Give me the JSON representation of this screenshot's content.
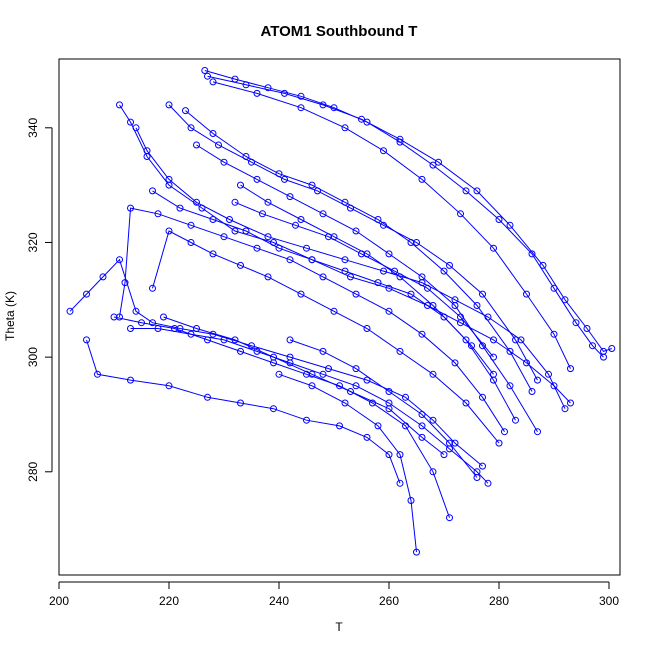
{
  "chart_data": {
    "type": "line",
    "title": "ATOM1 Southbound T",
    "xlabel": "T",
    "ylabel": "Theta (K)",
    "xlim": [
      200,
      302
    ],
    "ylim": [
      262,
      352
    ],
    "xticks": [
      200,
      220,
      240,
      260,
      280,
      300
    ],
    "yticks": [
      280,
      300,
      320,
      340
    ],
    "grid": false,
    "legend": "none",
    "marker": "open-circle",
    "color": "#0000ff",
    "series": [
      {
        "x": [
          226.5,
          232,
          238,
          244,
          250,
          256,
          262,
          268,
          274,
          280,
          286,
          290,
          294,
          297,
          299
        ],
        "y": [
          350,
          348.5,
          347,
          345.5,
          343.5,
          341,
          337.5,
          333.5,
          329,
          324,
          318,
          312,
          306,
          302,
          300
        ]
      },
      {
        "x": [
          227,
          234,
          241,
          248,
          255,
          262,
          269,
          276,
          282,
          288,
          292,
          296,
          299,
          300.5
        ],
        "y": [
          349,
          347.5,
          346,
          344,
          341.5,
          338,
          334,
          329,
          323,
          316,
          310,
          305,
          301,
          301.5
        ]
      },
      {
        "x": [
          228,
          236,
          244,
          252,
          259,
          266,
          273,
          279,
          285,
          290,
          293
        ],
        "y": [
          348,
          346,
          343.5,
          340,
          336,
          331,
          325,
          319,
          311,
          304,
          298
        ]
      },
      {
        "x": [
          211,
          213,
          216,
          220,
          226,
          232,
          239,
          246,
          253,
          260,
          267,
          273,
          279,
          285,
          290,
          293
        ],
        "y": [
          344,
          341,
          335,
          330,
          326,
          322,
          320,
          317,
          314,
          312,
          309,
          306,
          303,
          299,
          295,
          292
        ]
      },
      {
        "x": [
          214,
          216,
          220,
          225,
          231,
          238,
          245,
          252,
          259,
          266,
          272,
          278,
          284,
          289,
          292
        ],
        "y": [
          340,
          336,
          331,
          327,
          324,
          321,
          319,
          317,
          315,
          313,
          310,
          307,
          303,
          297,
          291
        ]
      },
      {
        "x": [
          220,
          224,
          229,
          235,
          241,
          247,
          253,
          259,
          265,
          271,
          277,
          283,
          287
        ],
        "y": [
          344,
          340,
          337,
          334,
          331,
          329,
          326,
          323,
          320,
          316,
          311,
          303,
          296
        ]
      },
      {
        "x": [
          223,
          228,
          234,
          240,
          246,
          252,
          258,
          264,
          270,
          276,
          282,
          286
        ],
        "y": [
          343,
          339,
          335,
          332,
          330,
          327,
          324,
          320,
          315,
          309,
          301,
          294
        ]
      },
      {
        "x": [
          217,
          222,
          228,
          234,
          240,
          246,
          252,
          258,
          264,
          270,
          275,
          279
        ],
        "y": [
          329,
          326,
          324,
          322,
          319,
          317,
          315,
          313,
          311,
          307,
          302,
          297
        ]
      },
      {
        "x": [
          232,
          237,
          243,
          249,
          255,
          261,
          267,
          273,
          279
        ],
        "y": [
          327,
          325,
          323,
          321,
          318,
          315,
          312,
          307,
          300
        ]
      },
      {
        "x": [
          202,
          205,
          208,
          211,
          214,
          217,
          222,
          228,
          235,
          242,
          249,
          256,
          263,
          268,
          272,
          277
        ],
        "y": [
          308,
          311,
          314,
          317,
          308,
          306,
          305,
          304,
          302,
          300,
          298,
          296,
          293,
          289,
          285,
          281
        ]
      },
      {
        "x": [
          213,
          218,
          224,
          230,
          236,
          242,
          248,
          254,
          260,
          266,
          271,
          276,
          278
        ],
        "y": [
          305,
          305,
          304,
          303,
          301,
          299,
          297,
          295,
          292,
          288,
          284,
          280,
          278
        ]
      },
      {
        "x": [
          210,
          215,
          221,
          227,
          233,
          239,
          245,
          251,
          257,
          263,
          268,
          271
        ],
        "y": [
          307,
          306,
          305,
          303,
          301,
          299,
          297,
          295,
          292,
          288,
          280,
          272
        ]
      },
      {
        "x": [
          205,
          207,
          213,
          220,
          227,
          233,
          239,
          245,
          251,
          256,
          260,
          262
        ],
        "y": [
          303,
          297,
          296,
          295,
          293,
          292,
          291,
          289,
          288,
          286,
          283,
          278
        ]
      },
      {
        "x": [
          219,
          225,
          232,
          239,
          246,
          253,
          260,
          266,
          270
        ],
        "y": [
          307,
          305,
          303,
          300,
          297,
          294,
          291,
          286,
          283
        ]
      },
      {
        "x": [
          240,
          246,
          252,
          258,
          262,
          264,
          265
        ],
        "y": [
          297,
          295,
          292,
          288,
          283,
          275,
          266
        ]
      },
      {
        "x": [
          211,
          212,
          213,
          218,
          224,
          230,
          236,
          242,
          248,
          254,
          260,
          266,
          272,
          277,
          281
        ],
        "y": [
          307,
          313,
          326,
          325,
          323,
          321,
          319,
          317,
          314,
          311,
          308,
          304,
          299,
          293,
          287
        ]
      },
      {
        "x": [
          233,
          238,
          244,
          250,
          256,
          262,
          268,
          274,
          279,
          283
        ],
        "y": [
          330,
          327,
          324,
          321,
          318,
          314,
          309,
          303,
          296,
          289
        ]
      },
      {
        "x": [
          225,
          230,
          236,
          242,
          248,
          254,
          260,
          266,
          272,
          277,
          282,
          287
        ],
        "y": [
          337,
          334,
          331,
          328,
          325,
          322,
          318,
          314,
          309,
          302,
          295,
          287
        ]
      },
      {
        "x": [
          217,
          220,
          224,
          228,
          233,
          238,
          244,
          250,
          256,
          262,
          268,
          274,
          280
        ],
        "y": [
          312,
          322,
          320,
          318,
          316,
          314,
          311,
          308,
          305,
          301,
          297,
          292,
          285
        ]
      },
      {
        "x": [
          242,
          248,
          254,
          260,
          266,
          271,
          276
        ],
        "y": [
          303,
          301,
          298,
          294,
          290,
          285,
          279
        ]
      }
    ]
  }
}
